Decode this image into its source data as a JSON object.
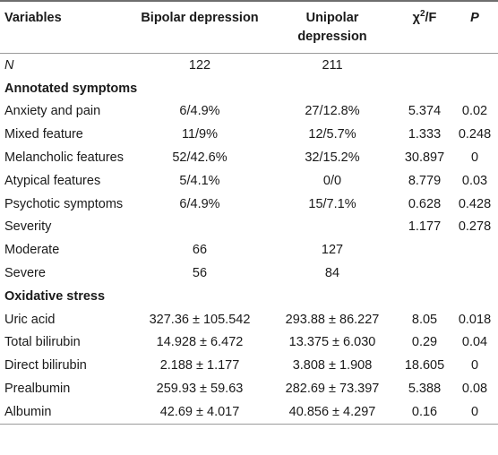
{
  "header": {
    "variables": "Variables",
    "bipolar": "Bipolar depression",
    "unipolar": "Unipolar depression",
    "chi_base": "χ",
    "chi_sup": "2",
    "chi_tail": "/F",
    "p": "P"
  },
  "rows": [
    {
      "label": "N",
      "italic": true,
      "bipolar": "122",
      "unipolar": "211",
      "chi": "",
      "p": ""
    },
    {
      "label": "Annotated symptoms",
      "section": true
    },
    {
      "label": "Anxiety and pain",
      "bipolar": "6/4.9%",
      "unipolar": "27/12.8%",
      "chi": "5.374",
      "p": "0.02"
    },
    {
      "label": "Mixed feature",
      "bipolar": "11/9%",
      "unipolar": "12/5.7%",
      "chi": "1.333",
      "p": "0.248"
    },
    {
      "label": "Melancholic features",
      "bipolar": "52/42.6%",
      "unipolar": "32/15.2%",
      "chi": "30.897",
      "p": "0"
    },
    {
      "label": "Atypical features",
      "bipolar": "5/4.1%",
      "unipolar": "0/0",
      "chi": "8.779",
      "p": "0.03"
    },
    {
      "label": "Psychotic symptoms",
      "bipolar": "6/4.9%",
      "unipolar": "15/7.1%",
      "chi": "0.628",
      "p": "0.428"
    },
    {
      "label": "Severity",
      "bipolar": "",
      "unipolar": "",
      "chi": "1.177",
      "p": "0.278"
    },
    {
      "label": "Moderate",
      "bipolar": "66",
      "unipolar": "127",
      "chi": "",
      "p": ""
    },
    {
      "label": "Severe",
      "bipolar": "56",
      "unipolar": "84",
      "chi": "",
      "p": ""
    },
    {
      "label": "Oxidative stress",
      "section": true
    },
    {
      "label": "Uric acid",
      "bipolar": "327.36 ± 105.542",
      "unipolar": "293.88 ± 86.227",
      "chi": "8.05",
      "p": "0.018"
    },
    {
      "label": "Total bilirubin",
      "bipolar": "14.928 ± 6.472",
      "unipolar": "13.375 ± 6.030",
      "chi": "0.29",
      "p": "0.04"
    },
    {
      "label": "Direct bilirubin",
      "bipolar": "2.188 ± 1.177",
      "unipolar": "3.808 ± 1.908",
      "chi": "18.605",
      "p": "0"
    },
    {
      "label": "Prealbumin",
      "bipolar": "259.93 ± 59.63",
      "unipolar": "282.69 ± 73.397",
      "chi": "5.388",
      "p": "0.08"
    },
    {
      "label": "Albumin",
      "bipolar": "42.69 ± 4.017",
      "unipolar": "40.856 ± 4.297",
      "chi": "0.16",
      "p": "0"
    }
  ]
}
